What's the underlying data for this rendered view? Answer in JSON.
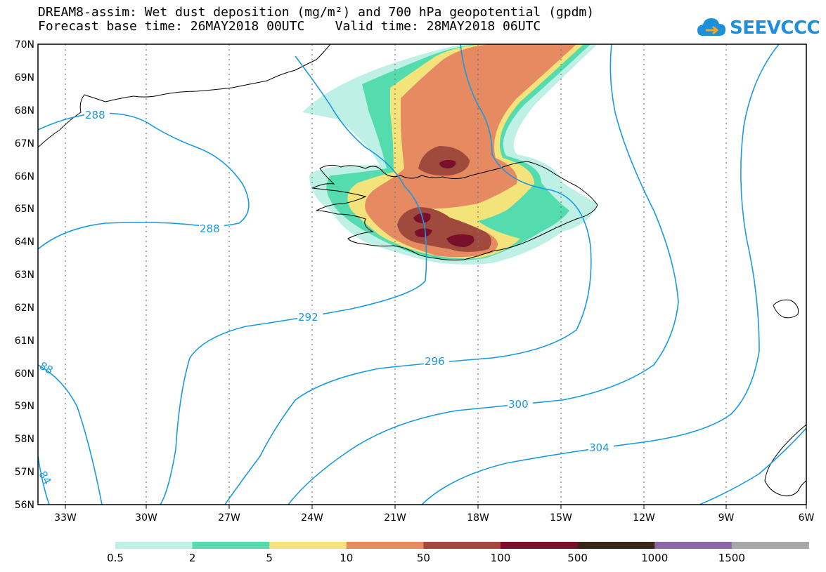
{
  "title_line1": "DREAM8-assim: Wet dust deposition (mg/m²) and 700 hPa geopotential (gpdm)",
  "title_line2": "Forecast base time: 26MAY2018 00UTC    Valid time: 28MAY2018 06UTC",
  "logo_text": "SEEVCCC",
  "logo_icon": "cloud-icon",
  "lat_labels": [
    "70N",
    "69N",
    "68N",
    "67N",
    "66N",
    "65N",
    "64N",
    "63N",
    "62N",
    "61N",
    "60N",
    "59N",
    "58N",
    "57N",
    "56N"
  ],
  "lon_labels": [
    "33W",
    "30W",
    "27W",
    "24W",
    "21W",
    "18W",
    "15W",
    "12W",
    "9W",
    "6W"
  ],
  "contour_labels": [
    "288",
    "288",
    "292",
    "296",
    "300",
    "304",
    "88",
    "84"
  ],
  "contour_color": "#1a9ae0",
  "colorbar": {
    "ticks": [
      "0.5",
      "2",
      "5",
      "10",
      "50",
      "100",
      "500",
      "1000",
      "1500"
    ],
    "colors": [
      "#bff0e6",
      "#55dcae",
      "#f4e27a",
      "#e68a62",
      "#a04a3e",
      "#7a0f2c",
      "#3a2616",
      "#8c66a6",
      "#a8a8a8"
    ]
  }
}
